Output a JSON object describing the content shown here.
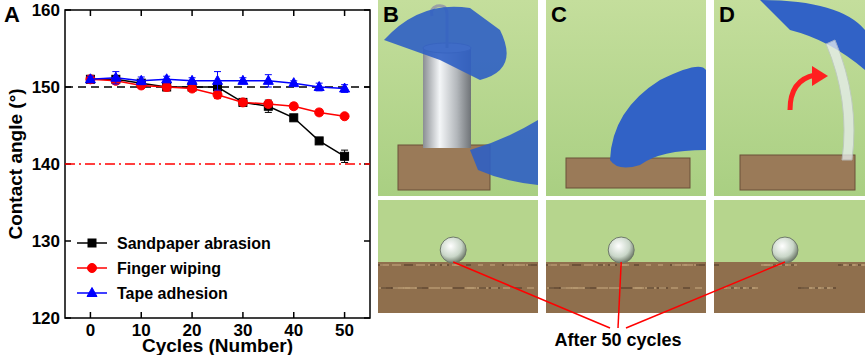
{
  "chart_data": {
    "type": "line",
    "panel_label": "A",
    "x_label": "Cycles (Number)",
    "y_label": "Contact angle (°)",
    "x": [
      0,
      5,
      10,
      15,
      20,
      25,
      30,
      35,
      40,
      45,
      50
    ],
    "xlim": [
      -5,
      55
    ],
    "xticks": [
      0,
      10,
      20,
      30,
      40,
      50
    ],
    "ylim": [
      120,
      160
    ],
    "yticks": [
      120,
      130,
      140,
      150,
      160
    ],
    "legend": "lower left",
    "series": [
      {
        "name": "Sandpaper abrasion",
        "color": "#000000",
        "marker": "square",
        "values": [
          151,
          151,
          150.5,
          150,
          150,
          150,
          148,
          147.5,
          146,
          143,
          141
        ],
        "errors": [
          0.5,
          0.4,
          0.4,
          0.4,
          0.3,
          0.4,
          0.4,
          0.8,
          0.3,
          0.3,
          0.8
        ]
      },
      {
        "name": "Finger wiping",
        "color": "#ff0000",
        "marker": "circle",
        "values": [
          151,
          150.8,
          150.2,
          150,
          149.8,
          149,
          148,
          147.8,
          147.5,
          146.7,
          146.2
        ],
        "errors": [
          0.5,
          0.4,
          0.4,
          0.5,
          0.3,
          0.5,
          0.4,
          0.4,
          0.4,
          0.4,
          0.3
        ]
      },
      {
        "name": "Tape adhesion",
        "color": "#0000ff",
        "marker": "triangle",
        "values": [
          151,
          151.2,
          150.8,
          151,
          150.8,
          150.8,
          150.8,
          150.8,
          150.5,
          150,
          149.8
        ],
        "errors": [
          0.4,
          0.8,
          0.5,
          0.4,
          0.4,
          1.2,
          0.4,
          0.8,
          0.3,
          0.5,
          0.5
        ]
      }
    ],
    "reference_lines": [
      {
        "y": 150,
        "color": "#000000",
        "line_style": "dashed"
      },
      {
        "y": 140,
        "color": "#ff0000",
        "line_style": "dashdot"
      }
    ]
  },
  "photos": {
    "panels": [
      {
        "label": "B"
      },
      {
        "label": "C"
      },
      {
        "label": "D"
      }
    ],
    "caption": "After 50 cycles"
  }
}
